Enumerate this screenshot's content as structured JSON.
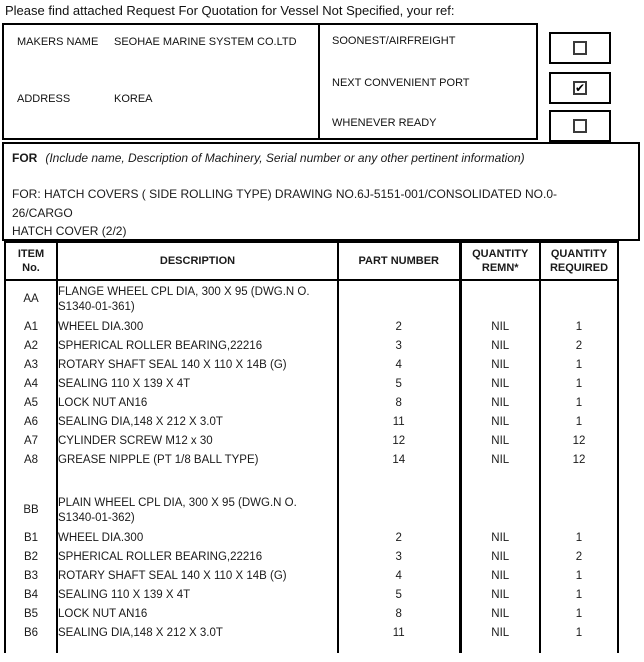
{
  "title": "Please find attached Request For Quotation for Vessel Not Specified, your ref:",
  "maker": {
    "makers_name_label": "MAKERS  NAME",
    "makers_name_value": "SEOHAE MARINE SYSTEM CO.LTD",
    "address_label": "ADDRESS",
    "address_value": "KOREA"
  },
  "delivery": {
    "check_glyph": "✔",
    "options": [
      {
        "label": "SOONEST/AIRFREIGHT",
        "checked": false
      },
      {
        "label": "NEXT CONVENIENT PORT",
        "checked": true
      },
      {
        "label": "WHENEVER READY",
        "checked": false
      }
    ]
  },
  "for_section": {
    "label": "FOR",
    "note": "(Include name, Description of Machinery, Serial number or any other pertinent information)",
    "value": "FOR: HATCH COVERS ( SIDE ROLLING TYPE) DRAWING NO.6J-5151-001/CONSOLIDATED NO.0-26/CARGO\nHATCH COVER (2/2)"
  },
  "table": {
    "headers": [
      "ITEM\nNo.",
      "DESCRIPTION",
      "PART NUMBER",
      "QUANTITY\nREMN*",
      "QUANTITY\nREQUIRED"
    ],
    "rows": [
      {
        "kind": "tall",
        "item": "AA",
        "description": "FLANGE WHEEL CPL DIA, 300 X 95 (DWG.N O.\nS1340-01-361)",
        "part": "",
        "remn": "",
        "req": ""
      },
      {
        "kind": "normal",
        "item": "A1",
        "description": "WHEEL DIA.300",
        "part": "2",
        "remn": "NIL",
        "req": "1"
      },
      {
        "kind": "normal",
        "item": "A2",
        "description": "SPHERICAL ROLLER BEARING,22216",
        "part": "3",
        "remn": "NIL",
        "req": "2"
      },
      {
        "kind": "normal",
        "item": "A3",
        "description": "ROTARY SHAFT SEAL 140 X 110 X 14B (G)",
        "part": "4",
        "remn": "NIL",
        "req": "1"
      },
      {
        "kind": "normal",
        "item": "A4",
        "description": "SEALING 110 X 139 X 4T",
        "part": "5",
        "remn": "NIL",
        "req": "1"
      },
      {
        "kind": "normal",
        "item": "A5",
        "description": "LOCK NUT AN16",
        "part": "8",
        "remn": "NIL",
        "req": "1"
      },
      {
        "kind": "normal",
        "item": "A6",
        "description": "SEALING DIA,148 X 212 X 3.0T",
        "part": "11",
        "remn": "NIL",
        "req": "1"
      },
      {
        "kind": "normal",
        "item": "A7",
        "description": "CYLINDER SCREW M12 x 30",
        "part": "12",
        "remn": "NIL",
        "req": "12"
      },
      {
        "kind": "normal",
        "item": "A8",
        "description": "GREASE NIPPLE (PT 1/8 BALL TYPE)",
        "part": "14",
        "remn": "NIL",
        "req": "12"
      },
      {
        "kind": "spacer",
        "item": "",
        "description": "",
        "part": "",
        "remn": "",
        "req": ""
      },
      {
        "kind": "tall",
        "item": "BB",
        "description": "PLAIN WHEEL CPL DIA, 300 X 95 (DWG.N O.\nS1340-01-362)",
        "part": "",
        "remn": "",
        "req": ""
      },
      {
        "kind": "normal",
        "item": "B1",
        "description": "WHEEL DIA.300",
        "part": "2",
        "remn": "NIL",
        "req": "1"
      },
      {
        "kind": "normal",
        "item": "B2",
        "description": "SPHERICAL ROLLER BEARING,22216",
        "part": "3",
        "remn": "NIL",
        "req": "2"
      },
      {
        "kind": "normal",
        "item": "B3",
        "description": "ROTARY SHAFT SEAL 140 X 110 X 14B (G)",
        "part": "4",
        "remn": "NIL",
        "req": "1"
      },
      {
        "kind": "normal",
        "item": "B4",
        "description": "SEALING 110 X 139 X 4T",
        "part": "5",
        "remn": "NIL",
        "req": "1"
      },
      {
        "kind": "normal",
        "item": "B5",
        "description": "LOCK NUT AN16",
        "part": "8",
        "remn": "NIL",
        "req": "1"
      },
      {
        "kind": "normal",
        "item": "B6",
        "description": "SEALING DIA,148 X 212 X 3.0T",
        "part": "11",
        "remn": "NIL",
        "req": "1"
      },
      {
        "kind": "partial",
        "item": "",
        "description": "",
        "part": "",
        "remn": "",
        "req": ""
      }
    ]
  }
}
